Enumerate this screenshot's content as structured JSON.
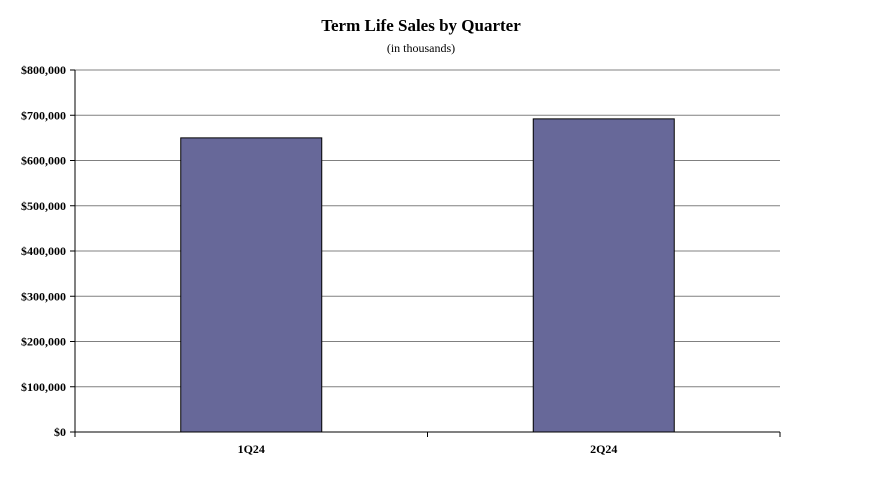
{
  "chart_data": {
    "type": "bar",
    "title": "Term Life Sales by Quarter",
    "subtitle": "(in thousands)",
    "xlabel": "",
    "ylabel": "",
    "categories": [
      "1Q24",
      "2Q24"
    ],
    "values": [
      650000,
      692000
    ],
    "ylim": [
      0,
      800000
    ],
    "yticks": [
      0,
      100000,
      200000,
      300000,
      400000,
      500000,
      600000,
      700000,
      800000
    ],
    "ytick_labels": [
      "$0",
      "$100,000",
      "$200,000",
      "$300,000",
      "$400,000",
      "$500,000",
      "$600,000",
      "$700,000",
      "$800,000"
    ],
    "grid": true,
    "legend": "none",
    "colors": {
      "bar_fill": "#676899",
      "bar_stroke": "#000000",
      "grid": "#808080",
      "axis": "#000000"
    }
  }
}
